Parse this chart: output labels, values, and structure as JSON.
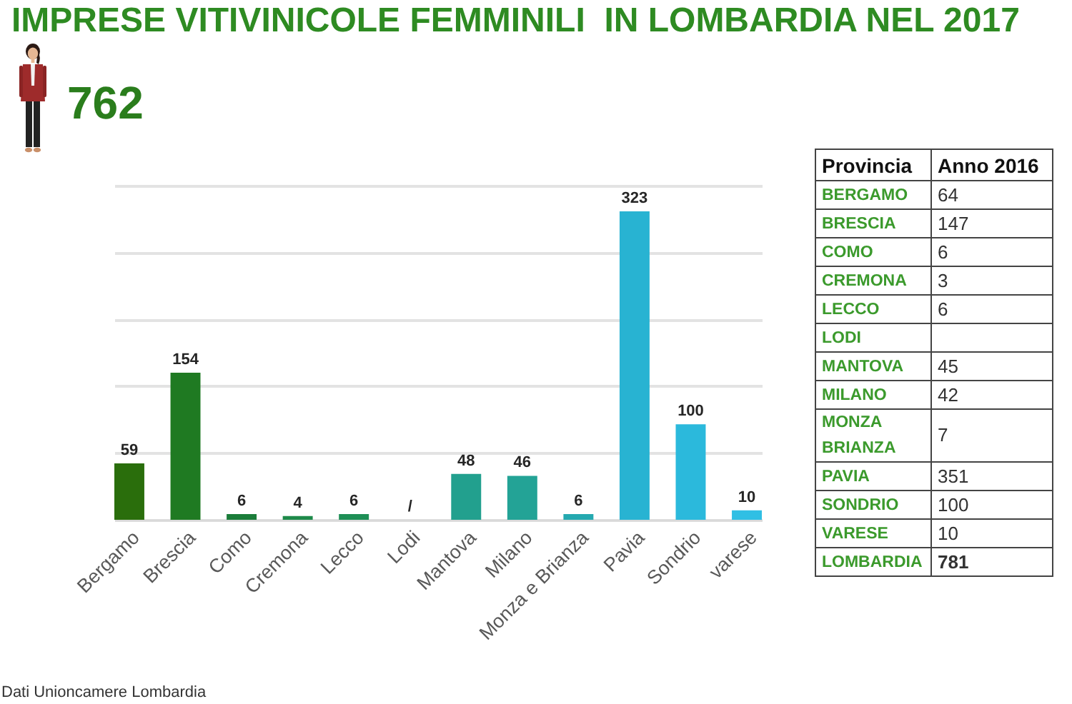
{
  "chart_data": [
    {
      "type": "bar",
      "title": "IMPRESE VITIVINICOLE FEMMINILI  IN LOMBARDIA NEL 2017",
      "subtitle": "762",
      "categories": [
        "Bergamo",
        "Brescia",
        "Como",
        "Cremona",
        "Lecco",
        "Lodi",
        "Mantova",
        "Milano",
        "Monza e Brianza",
        "Pavia",
        "Sondrio",
        "varese"
      ],
      "values": [
        59,
        154,
        6,
        4,
        6,
        null,
        48,
        46,
        6,
        323,
        100,
        10
      ],
      "colors": [
        "#2a6e0c",
        "#1f7a22",
        "#1b7d3a",
        "#1e8a4a",
        "#1e8f56",
        null,
        "#22a08e",
        "#23a396",
        "#25a9b0",
        "#28b3d2",
        "#2bb9dc",
        "#30bfe4"
      ],
      "value_labels": [
        "59",
        "154",
        "6",
        "4",
        "6",
        "/",
        "48",
        "46",
        "6",
        "323",
        "100",
        "10"
      ],
      "ylim": [
        0,
        350
      ],
      "yticks": [
        {
          "value": 0,
          "label": null
        },
        {
          "value": 70,
          "label": null
        },
        {
          "value": 140,
          "label": null
        },
        {
          "value": 210,
          "label": null
        },
        {
          "value": 280,
          "label": null
        },
        {
          "value": 350,
          "label": null
        }
      ],
      "grid": "y",
      "tick_labels": "x",
      "annotations": [
        "Dati Unioncamere Lombardia"
      ]
    },
    {
      "type": "other",
      "xlabel": "Provincia",
      "ylabel": "Anno 2016",
      "categories": [
        "BERGAMO",
        "BRESCIA",
        "COMO",
        "CREMONA",
        "LECCO",
        "LODI",
        "MANTOVA",
        "MILANO",
        "MONZA BRIANZA",
        "PAVIA",
        "SONDRIO",
        "VARESE",
        "LOMBARDIA"
      ],
      "values": [
        64,
        147,
        6,
        3,
        6,
        null,
        45,
        42,
        7,
        351,
        100,
        10,
        781
      ],
      "data_labels": true
    }
  ]
}
